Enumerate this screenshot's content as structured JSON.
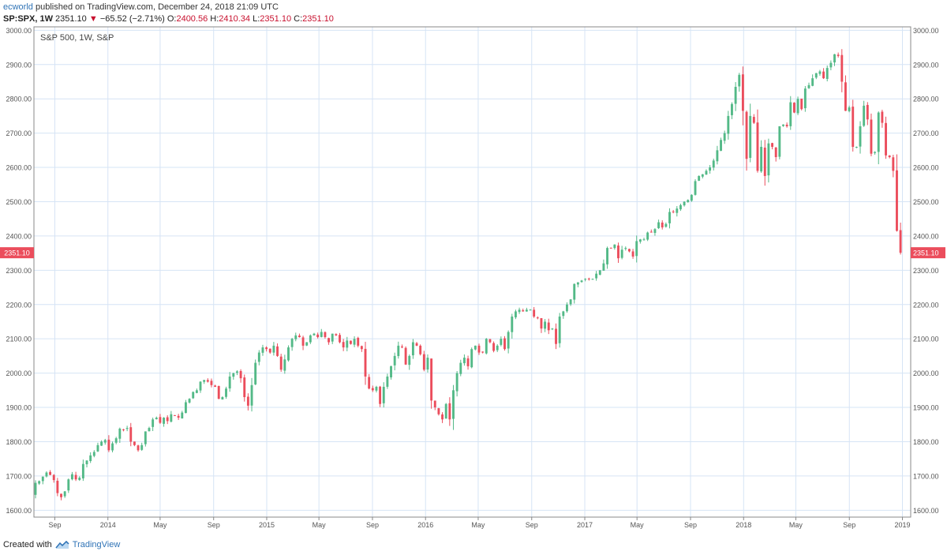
{
  "header": {
    "author": "ecworld",
    "published_text": "published on TradingView.com, December 24, 2018 21:09 UTC",
    "symbol": "SP:SPX, 1W",
    "last": "2351.10",
    "change": "−65.52 (−2.71%)",
    "open_label": "O:",
    "open": "2400.56",
    "high_label": "H:",
    "high": "2410.34",
    "low_label": "L:",
    "low": "2351.10",
    "close_label": "C:",
    "close": "2351.10"
  },
  "footer": {
    "created_with": "Created with",
    "brand": "TradingView"
  },
  "colors": {
    "up": "#53b987",
    "down": "#eb4d5c",
    "grid": "#d6e4f5",
    "axis_text": "#555555",
    "price_tag": "#eb4d5c"
  },
  "chart_data": {
    "type": "candlestick",
    "title": "S&P 500, 1W, S&P",
    "ylim": [
      1580,
      3010
    ],
    "y_ticks": [
      "1600.00",
      "1700.00",
      "1800.00",
      "1900.00",
      "2000.00",
      "2100.00",
      "2200.00",
      "2300.00",
      "2400.00",
      "2500.00",
      "2600.00",
      "2700.00",
      "2800.00",
      "2900.00",
      "3000.00"
    ],
    "x_ticks": [
      "Sep",
      "2014",
      "May",
      "Sep",
      "2015",
      "May",
      "Sep",
      "2016",
      "May",
      "Sep",
      "2017",
      "May",
      "Sep",
      "2018",
      "May",
      "Sep",
      "2019"
    ],
    "x_range": [
      "2013-07-15",
      "2019-01-20"
    ],
    "x_tick_dates": [
      "2013-09-01",
      "2014-01-01",
      "2014-05-01",
      "2014-09-01",
      "2015-01-01",
      "2015-05-01",
      "2015-09-01",
      "2016-01-01",
      "2016-05-01",
      "2016-09-01",
      "2017-01-01",
      "2017-05-01",
      "2017-09-01",
      "2018-01-01",
      "2018-05-01",
      "2018-09-01",
      "2019-01-01"
    ],
    "last_price": "2351.10",
    "closes": [
      [
        1680,
        1685,
        1698,
        1710,
        1703,
        1688,
        1650,
        1638,
        1655,
        1690,
        1705,
        1690,
        1695,
        1735,
        1745,
        1760,
        1770,
        1790,
        1800,
        1805,
        1775,
        1795,
        1810,
        1838,
        1835,
        1840,
        1800,
        1790,
        1775,
        1790,
        1830,
        1840,
        1865,
        1870,
        1855,
        1870,
        1860,
        1880,
        1875,
        1870,
        1885,
        1915,
        1925,
        1945,
        1950,
        1975,
        1980,
        1975,
        1965,
        1960,
        1925,
        1930,
        1955,
        1990,
        2000,
        2005,
        1985,
        1930,
        1905,
        1965,
        2030,
        2060,
        2075,
        2070,
        2060,
        2080,
        2050,
        2010,
        2040,
        2075,
        2100,
        2110,
        2105,
        2080,
        2090,
        2110,
        2115,
        2105,
        2120,
        2105,
        2090,
        2115,
        2110,
        2090,
        2075,
        2095,
        2085,
        2100
      ],
      [
        2080,
        2070,
        1990,
        1955,
        1950,
        1960,
        1910,
        1960,
        1990,
        2020,
        2050,
        2080,
        2075,
        2025,
        2050,
        2090,
        2080,
        2055,
        2010,
        2045,
        1920,
        1900,
        1880,
        1865,
        1910,
        1865,
        1950,
        2000,
        2030,
        2045,
        2020,
        2070,
        2080,
        2060,
        2060,
        2100,
        2090,
        2065,
        2080,
        2100,
        2070,
        2120,
        2165,
        2180,
        2185,
        2180,
        2185,
        2185,
        2165,
        2160,
        2130,
        2150,
        2125,
        2130,
        2085,
        2165,
        2180,
        2200,
        2215,
        2260,
        2265,
        2270,
        2275,
        2275,
        2275,
        2290,
        2300,
        2320,
        2365,
        2365,
        2375,
        2335,
        2360,
        2365,
        2355,
        2340,
        2385,
        2390,
        2390,
        2410,
        2410,
        2420,
        2440,
        2425,
        2435,
        2470,
        2470,
        2480,
        2490,
        2500
      ],
      [
        2505,
        2520,
        2560,
        2575,
        2580,
        2590,
        2600,
        2620,
        2650,
        2680,
        2700,
        2750,
        2785,
        2835,
        2870,
        2765,
        2625,
        2750,
        2730,
        2590,
        2660,
        2575,
        2670,
        2660,
        2630,
        2720,
        2725,
        2720,
        2790,
        2760,
        2800,
        2770,
        2830,
        2840,
        2860,
        2875,
        2880,
        2860,
        2890,
        2905,
        2930,
        2925,
        2850,
        2765,
        2775,
        2660,
        2660,
        2720,
        2780,
        2740,
        2640,
        2645,
        2760,
        2730,
        2635,
        2630,
        2590,
        2415,
        2351.1
      ]
    ]
  }
}
